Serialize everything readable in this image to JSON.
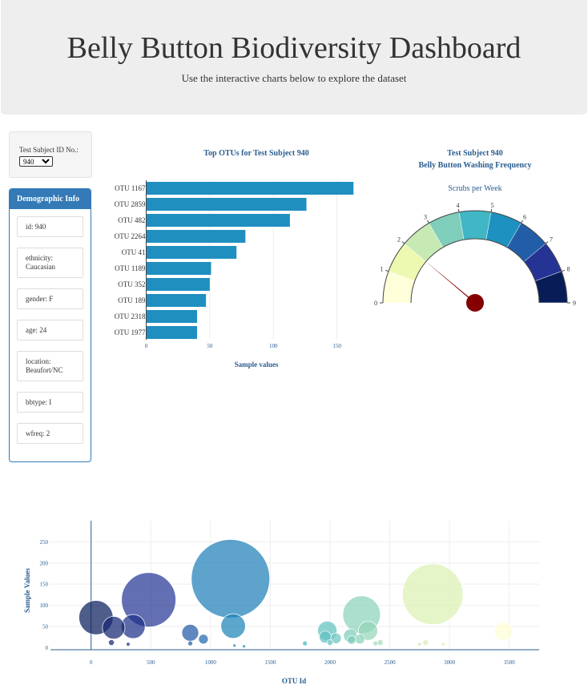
{
  "header": {
    "title": "Belly Button Biodiversity Dashboard",
    "subtitle": "Use the interactive charts below to explore the dataset"
  },
  "selector": {
    "label": "Test Subject ID No.:",
    "selected": "940"
  },
  "demographics": {
    "heading": "Demographic Info",
    "items": [
      {
        "line1": "id: 940",
        "line2": ""
      },
      {
        "line1": "ethnicity:",
        "line2": "Caucasian"
      },
      {
        "line1": "gender: F",
        "line2": ""
      },
      {
        "line1": "age: 24",
        "line2": ""
      },
      {
        "line1": "location:",
        "line2": "Beaufort/NC"
      },
      {
        "line1": "bbtype: I",
        "line2": ""
      },
      {
        "line1": "wfreq: 2",
        "line2": ""
      }
    ]
  },
  "colors": {
    "panel": "#337ab7",
    "bar": "#1f8fc0",
    "title": "#2a5d8f",
    "needle": "#850000"
  },
  "chart_data": [
    {
      "type": "bar",
      "orientation": "horizontal",
      "title": "Top OTUs for Test Subject 940",
      "xlabel": "Sample values",
      "ylabel": "",
      "categories": [
        "OTU 1167",
        "OTU 2859",
        "OTU 482",
        "OTU 2264",
        "OTU 41",
        "OTU 1189",
        "OTU 352",
        "OTU 189",
        "OTU 2318",
        "OTU 1977"
      ],
      "values": [
        163,
        126,
        113,
        78,
        71,
        51,
        50,
        47,
        40,
        40
      ],
      "xlim": [
        0,
        165
      ],
      "xticks": [
        0,
        50,
        100,
        150
      ]
    },
    {
      "type": "gauge",
      "title": "Test Subject 940",
      "subtitle": "Belly Button Washing Frequency",
      "label": "Scrubs per Week",
      "range": [
        0,
        9
      ],
      "value": 2,
      "ticks": [
        "0",
        "1",
        "2",
        "3",
        "4",
        "5",
        "6",
        "7",
        "8",
        "9"
      ],
      "band_colors": [
        "#ffffd9",
        "#edf8b1",
        "#c7e9b4",
        "#7fcdbb",
        "#41b6c4",
        "#1d91c0",
        "#225ea8",
        "#253494",
        "#081d58"
      ]
    },
    {
      "type": "scatter",
      "style": "bubble",
      "xlabel": "OTU Id",
      "ylabel": "Sample Values",
      "xlim": [
        -340,
        3750
      ],
      "ylim": [
        -5,
        300
      ],
      "xticks": [
        0,
        500,
        1000,
        1500,
        2000,
        2500,
        3000,
        3500
      ],
      "yticks": [
        0,
        50,
        100,
        150,
        200,
        250
      ],
      "points": [
        {
          "x": 41,
          "y": 71
        },
        {
          "x": 189,
          "y": 47
        },
        {
          "x": 352,
          "y": 50
        },
        {
          "x": 482,
          "y": 113
        },
        {
          "x": 170,
          "y": 12
        },
        {
          "x": 310,
          "y": 8
        },
        {
          "x": 830,
          "y": 35
        },
        {
          "x": 940,
          "y": 20
        },
        {
          "x": 830,
          "y": 10
        },
        {
          "x": 1167,
          "y": 163
        },
        {
          "x": 1189,
          "y": 51
        },
        {
          "x": 1200,
          "y": 5
        },
        {
          "x": 1280,
          "y": 3
        },
        {
          "x": 1790,
          "y": 10
        },
        {
          "x": 1977,
          "y": 40
        },
        {
          "x": 1960,
          "y": 25
        },
        {
          "x": 2000,
          "y": 12
        },
        {
          "x": 2050,
          "y": 22
        },
        {
          "x": 2170,
          "y": 28
        },
        {
          "x": 2180,
          "y": 18
        },
        {
          "x": 2264,
          "y": 78
        },
        {
          "x": 2250,
          "y": 20
        },
        {
          "x": 2318,
          "y": 40
        },
        {
          "x": 2380,
          "y": 10
        },
        {
          "x": 2420,
          "y": 12
        },
        {
          "x": 2750,
          "y": 8
        },
        {
          "x": 2800,
          "y": 12
        },
        {
          "x": 2859,
          "y": 126
        },
        {
          "x": 2950,
          "y": 8
        },
        {
          "x": 3450,
          "y": 38
        }
      ]
    }
  ]
}
